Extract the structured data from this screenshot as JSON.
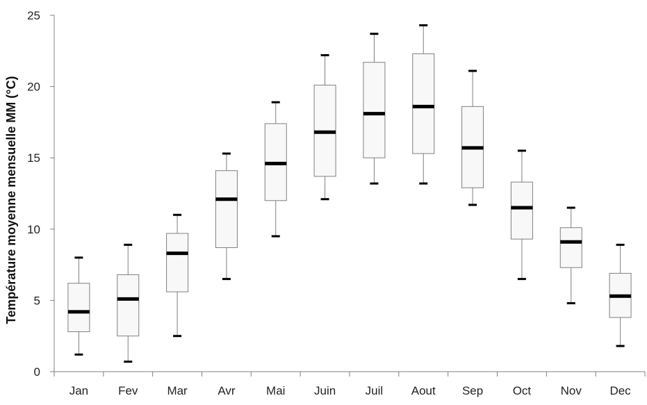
{
  "chart_data": {
    "type": "boxplot",
    "title": "",
    "xlabel": "",
    "ylabel": "Température moyenne mensuelle MM (°C)",
    "ylim": [
      0,
      25
    ],
    "yticks": [
      0,
      5,
      10,
      15,
      20,
      25
    ],
    "grid": false,
    "legend": "none",
    "box_fill": "#f8f8f8",
    "box_stroke": "#7f7f7f",
    "median_color": "#000000",
    "categories": [
      "Jan",
      "Fev",
      "Mar",
      "Avr",
      "Mai",
      "Juin",
      "Juil",
      "Aout",
      "Sep",
      "Oct",
      "Nov",
      "Dec"
    ],
    "boxes": [
      {
        "min": 1.2,
        "q1": 2.8,
        "median": 4.2,
        "q3": 6.2,
        "max": 8.0
      },
      {
        "min": 0.7,
        "q1": 2.5,
        "median": 5.1,
        "q3": 6.8,
        "max": 8.9
      },
      {
        "min": 2.5,
        "q1": 5.6,
        "median": 8.3,
        "q3": 9.7,
        "max": 11.0
      },
      {
        "min": 6.5,
        "q1": 8.7,
        "median": 12.1,
        "q3": 14.1,
        "max": 15.3
      },
      {
        "min": 9.5,
        "q1": 12.0,
        "median": 14.6,
        "q3": 17.4,
        "max": 18.9
      },
      {
        "min": 12.1,
        "q1": 13.7,
        "median": 16.8,
        "q3": 20.1,
        "max": 22.2
      },
      {
        "min": 13.2,
        "q1": 15.0,
        "median": 18.1,
        "q3": 21.7,
        "max": 23.7
      },
      {
        "min": 13.2,
        "q1": 15.3,
        "median": 18.6,
        "q3": 22.3,
        "max": 24.3
      },
      {
        "min": 11.7,
        "q1": 12.9,
        "median": 15.7,
        "q3": 18.6,
        "max": 21.1
      },
      {
        "min": 6.5,
        "q1": 9.3,
        "median": 11.5,
        "q3": 13.3,
        "max": 15.5
      },
      {
        "min": 4.8,
        "q1": 7.3,
        "median": 9.1,
        "q3": 10.1,
        "max": 11.5
      },
      {
        "min": 1.8,
        "q1": 3.8,
        "median": 5.3,
        "q3": 6.9,
        "max": 8.9
      }
    ]
  }
}
